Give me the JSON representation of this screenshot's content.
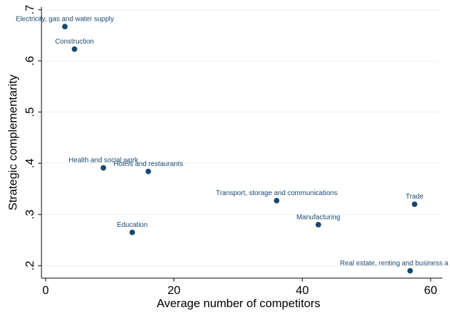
{
  "chart_data": {
    "type": "scatter",
    "xlabel": "Average number of competitors",
    "ylabel": "Strategic complementarity",
    "xlim": [
      0,
      61
    ],
    "ylim": [
      0.18,
      0.7
    ],
    "xticks": [
      {
        "value": 0,
        "label": "0"
      },
      {
        "value": 20,
        "label": "20"
      },
      {
        "value": 40,
        "label": "40"
      },
      {
        "value": 60,
        "label": "60"
      }
    ],
    "yticks": [
      {
        "value": 0.2,
        "label": ".2"
      },
      {
        "value": 0.3,
        "label": ".3"
      },
      {
        "value": 0.4,
        "label": ".4"
      },
      {
        "value": 0.5,
        "label": ".5"
      },
      {
        "value": 0.6,
        "label": ".6"
      },
      {
        "value": 0.7,
        "label": ".7"
      }
    ],
    "grid": true,
    "colors": {
      "marker": "#1a476f",
      "grid": "#eaf2f3"
    },
    "points": [
      {
        "label": "Electricity, gas and water supply",
        "x": 3.0,
        "y": 0.667
      },
      {
        "label": "Construction",
        "x": 4.5,
        "y": 0.623
      },
      {
        "label": "Health and social work",
        "x": 9.0,
        "y": 0.391
      },
      {
        "label": "Hotels and restaurants",
        "x": 16.0,
        "y": 0.384
      },
      {
        "label": "Education",
        "x": 13.5,
        "y": 0.265
      },
      {
        "label": "Transport, storage and communications",
        "x": 36.0,
        "y": 0.327
      },
      {
        "label": "Manufacturing",
        "x": 42.5,
        "y": 0.28
      },
      {
        "label": "Trade",
        "x": 57.5,
        "y": 0.32
      },
      {
        "label": "Real estate, renting and business a",
        "x": 56.8,
        "y": 0.19
      }
    ]
  }
}
